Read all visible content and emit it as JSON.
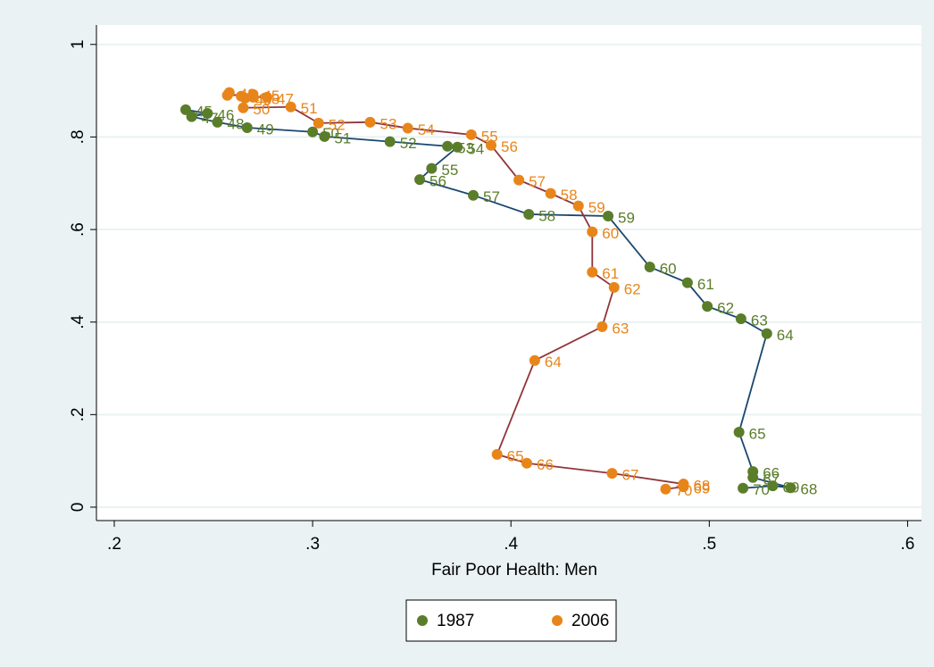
{
  "chart_data": {
    "type": "scatter",
    "connected": true,
    "xlabel": "Fair Poor Health: Men",
    "xlim": [
      0.191,
      0.607
    ],
    "ylim": [
      -0.029,
      1.042
    ],
    "xticks": [
      {
        "value": 0.2,
        "label": ".2"
      },
      {
        "value": 0.3,
        "label": ".3"
      },
      {
        "value": 0.4,
        "label": ".4"
      },
      {
        "value": 0.5,
        "label": ".5"
      },
      {
        "value": 0.6,
        "label": ".6"
      }
    ],
    "yticks": [
      0,
      {
        "value": 0.2,
        "label": ".2"
      },
      {
        "value": 0.4,
        "label": ".4"
      },
      {
        "value": 0.6,
        "label": ".6"
      },
      {
        "value": 0.8,
        "label": ".8"
      },
      1
    ],
    "grid": true,
    "legend": "bottom",
    "series": [
      {
        "name": "1987",
        "color": "#5a7d2a",
        "line_color": "#1a476f",
        "labels": [
          45,
          46,
          47,
          48,
          49,
          50,
          51,
          52,
          53,
          54,
          55,
          56,
          57,
          58,
          59,
          60,
          61,
          62,
          63,
          64,
          65,
          66,
          67,
          68,
          69,
          70
        ],
        "x": [
          0.236,
          0.247,
          0.239,
          0.252,
          0.267,
          0.3,
          0.306,
          0.339,
          0.368,
          0.373,
          0.36,
          0.354,
          0.381,
          0.409,
          0.449,
          0.47,
          0.489,
          0.499,
          0.516,
          0.529,
          0.515,
          0.522,
          0.522,
          0.541,
          0.532,
          0.517
        ],
        "values": [
          0.859,
          0.851,
          0.844,
          0.832,
          0.82,
          0.811,
          0.801,
          0.79,
          0.78,
          0.778,
          0.732,
          0.708,
          0.674,
          0.633,
          0.629,
          0.519,
          0.485,
          0.434,
          0.407,
          0.375,
          0.162,
          0.077,
          0.064,
          0.042,
          0.046,
          0.041
        ]
      },
      {
        "name": "2006",
        "color": "#e8851a",
        "line_color": "#90353b",
        "labels": [
          43,
          44,
          45,
          46,
          47,
          48,
          49,
          50,
          51,
          52,
          53,
          54,
          55,
          56,
          57,
          58,
          59,
          60,
          61,
          62,
          63,
          64,
          65,
          66,
          67,
          68,
          69,
          70
        ],
        "x": [
          0.258,
          0.257,
          0.27,
          0.264,
          0.277,
          0.27,
          0.266,
          0.265,
          0.289,
          0.303,
          0.329,
          0.348,
          0.38,
          0.39,
          0.404,
          0.42,
          0.434,
          0.441,
          0.441,
          0.452,
          0.446,
          0.412,
          0.393,
          0.408,
          0.451,
          0.487,
          0.487,
          0.478
        ],
        "values": [
          0.896,
          0.89,
          0.892,
          0.888,
          0.886,
          0.886,
          0.884,
          0.863,
          0.865,
          0.83,
          0.832,
          0.819,
          0.805,
          0.782,
          0.707,
          0.678,
          0.651,
          0.595,
          0.508,
          0.475,
          0.39,
          0.317,
          0.114,
          0.095,
          0.073,
          0.05,
          0.044,
          0.039
        ]
      }
    ]
  }
}
